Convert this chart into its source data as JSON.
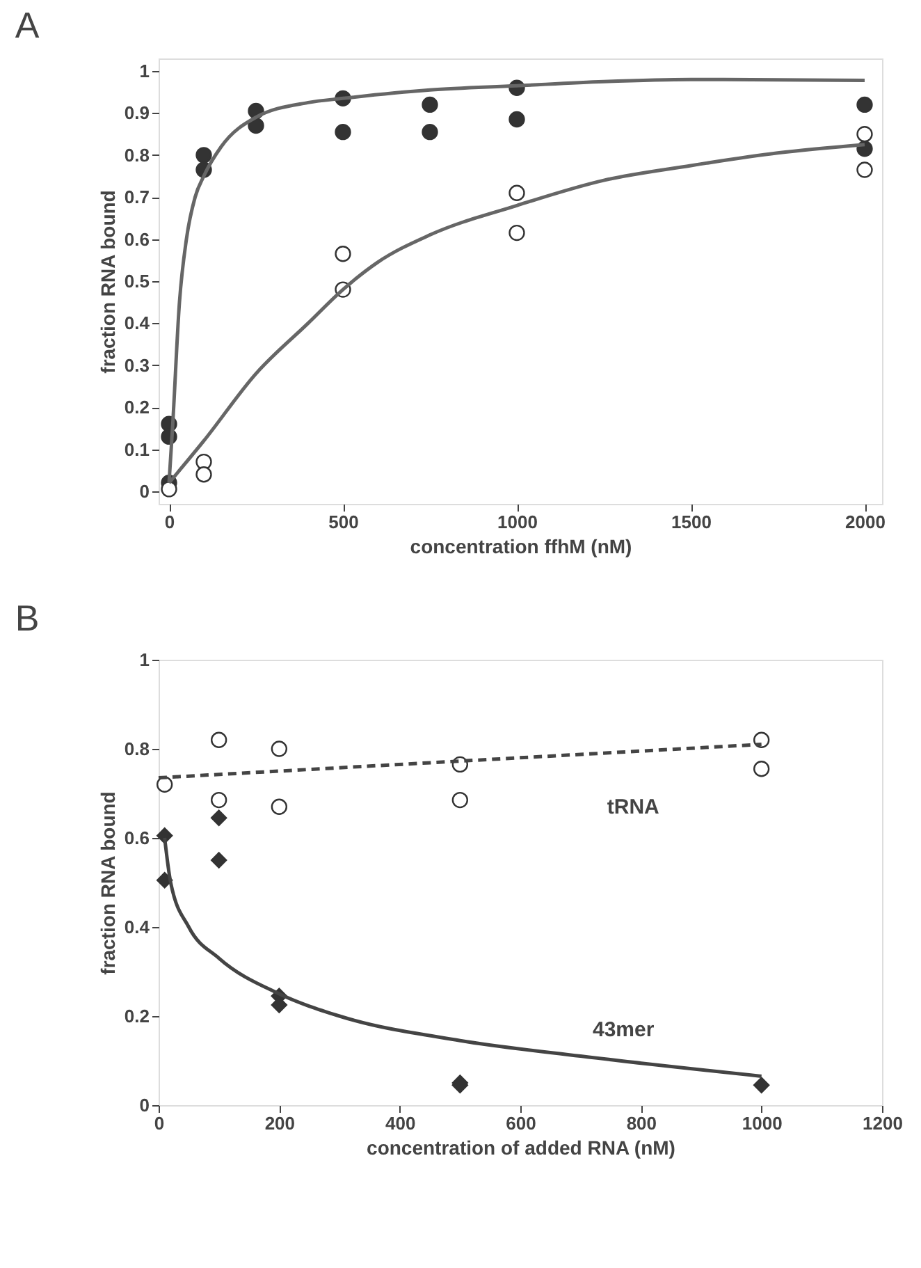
{
  "chart_data": [
    {
      "type": "scatter",
      "title": "A",
      "xlabel": "concentration ffhM (nM)",
      "ylabel": "fraction RNA bound",
      "xlim": [
        -30,
        2050
      ],
      "xticks": [
        0,
        500,
        1000,
        1500,
        2000
      ],
      "ylim": [
        -0.03,
        1.03
      ],
      "yticks": [
        0,
        0.1,
        0.2,
        0.3,
        0.4,
        0.5,
        0.6,
        0.7,
        0.8,
        0.9,
        1
      ],
      "grid": false,
      "legend": false,
      "series": [
        {
          "marker": "circle",
          "color": "#333333",
          "x": [
            0,
            0,
            0,
            100,
            100,
            250,
            250,
            500,
            500,
            750,
            750,
            1000,
            1000,
            2000,
            2000
          ],
          "values": [
            0.16,
            0.13,
            0.02,
            0.8,
            0.765,
            0.905,
            0.87,
            0.935,
            0.855,
            0.92,
            0.855,
            0.96,
            0.885,
            0.92,
            0.815
          ]
        },
        {
          "marker": "circle",
          "color": "#ffffff",
          "x": [
            0,
            100,
            100,
            500,
            500,
            1000,
            1000,
            2000,
            2000
          ],
          "values": [
            0.005,
            0.07,
            0.04,
            0.565,
            0.48,
            0.71,
            0.615,
            0.85,
            0.765
          ]
        },
        {
          "type": "line",
          "line_style": "solid",
          "color": "#666666",
          "x": [
            0,
            10,
            30,
            50,
            75,
            100,
            150,
            250,
            400,
            500,
            750,
            1000,
            1250,
            1500,
            2000
          ],
          "values": [
            0.02,
            0.15,
            0.45,
            0.6,
            0.7,
            0.75,
            0.82,
            0.89,
            0.925,
            0.935,
            0.955,
            0.965,
            0.975,
            0.98,
            0.978
          ]
        },
        {
          "type": "line",
          "line_style": "solid",
          "color": "#666666",
          "x": [
            0,
            100,
            250,
            400,
            500,
            600,
            750,
            1000,
            1250,
            1500,
            1750,
            2000
          ],
          "values": [
            0.02,
            0.12,
            0.28,
            0.4,
            0.48,
            0.545,
            0.61,
            0.68,
            0.74,
            0.775,
            0.805,
            0.825
          ]
        }
      ]
    },
    {
      "type": "scatter",
      "title": "B",
      "xlabel": "concentration  of  added  RNA  (nM)",
      "ylabel": "fraction   RNA   bound",
      "xlim": [
        0,
        1200
      ],
      "xticks": [
        0,
        200,
        400,
        600,
        800,
        1000,
        1200
      ],
      "ylim": [
        0,
        1
      ],
      "yticks": [
        0,
        0.2,
        0.4,
        0.6,
        0.8,
        1
      ],
      "grid": false,
      "legend": false,
      "annotations": [
        "tRNA",
        "43mer"
      ],
      "series": [
        {
          "marker": "circle",
          "color": "#ffffff",
          "x": [
            10,
            100,
            100,
            200,
            200,
            500,
            500,
            1000,
            1000
          ],
          "values": [
            0.72,
            0.82,
            0.685,
            0.8,
            0.67,
            0.765,
            0.685,
            0.82,
            0.755
          ]
        },
        {
          "marker": "diamond",
          "color": "#333333",
          "x": [
            10,
            10,
            100,
            100,
            200,
            200,
            500,
            500,
            1000
          ],
          "values": [
            0.605,
            0.505,
            0.645,
            0.55,
            0.245,
            0.225,
            0.05,
            0.045,
            0.045
          ]
        },
        {
          "type": "line",
          "line_style": "dashed",
          "color": "#444444",
          "x": [
            0,
            1000
          ],
          "values": [
            0.735,
            0.81
          ]
        },
        {
          "type": "line",
          "line_style": "solid",
          "color": "#444444",
          "x": [
            10,
            20,
            50,
            100,
            200,
            300,
            500,
            700,
            1000
          ],
          "values": [
            0.6,
            0.5,
            0.4,
            0.33,
            0.25,
            0.2,
            0.145,
            0.11,
            0.065
          ]
        }
      ]
    }
  ]
}
